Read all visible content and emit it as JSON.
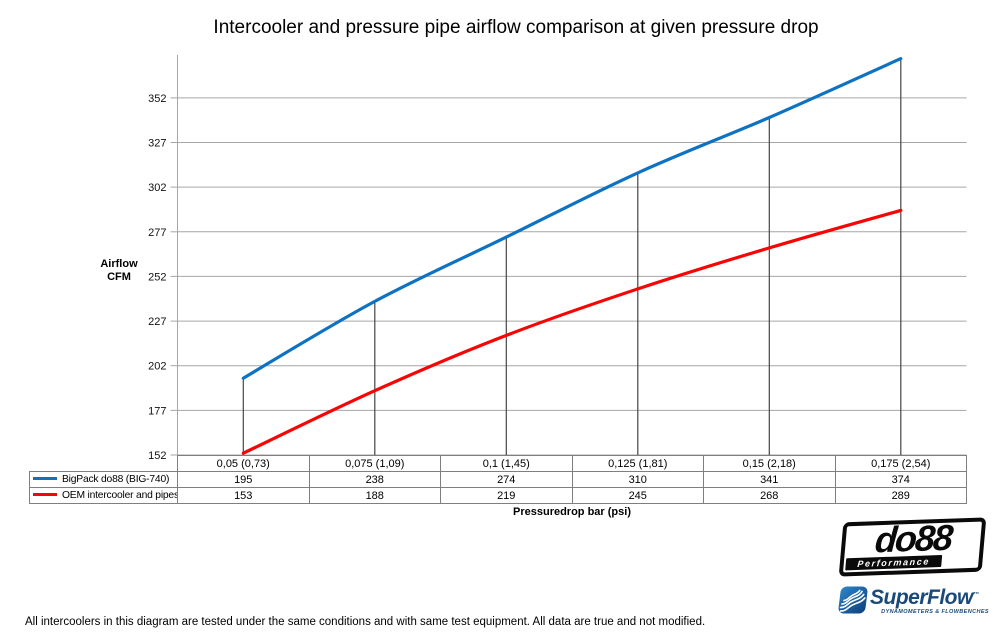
{
  "page": {
    "footer_note": "All intercoolers in this diagram are tested under the same conditions and with same test equipment. All data are true and not modified."
  },
  "chart_data": {
    "type": "line",
    "title": "Intercooler and pressure pipe airflow comparison at given pressure drop",
    "categories": [
      "0,05 (0,73)",
      "0,075 (1,09)",
      "0,1 (1,45)",
      "0,125 (1,81)",
      "0,15 (2,18)",
      "0,175 (2,54)"
    ],
    "series": [
      {
        "name": "BigPack do88 (BIG-740)",
        "color": "#0e72c2",
        "values": [
          195,
          238,
          274,
          310,
          341,
          374
        ]
      },
      {
        "name": "OEM intercooler and pipes",
        "color": "#f80404",
        "values": [
          153,
          188,
          219,
          245,
          268,
          289
        ]
      }
    ],
    "x_axis_title": "Pressuredrop bar (psi)",
    "y_axis_title": "Airflow CFM",
    "yticks": [
      152,
      177,
      202,
      227,
      252,
      277,
      302,
      327,
      352
    ],
    "ylim": [
      152,
      376
    ],
    "grid": true,
    "smooth": true,
    "legend_position": "table-left",
    "gridline_color": "#a6a6a6",
    "dropline_color": "#454545",
    "table_border_color": "#7f7f7f"
  },
  "logos": {
    "do88": {
      "name": "do88",
      "subtext": "Performance"
    },
    "superflow": {
      "name": "SuperFlow",
      "trademark": "™",
      "subtext": "DYNAMOMETERS & FLOWBENCHES"
    }
  }
}
